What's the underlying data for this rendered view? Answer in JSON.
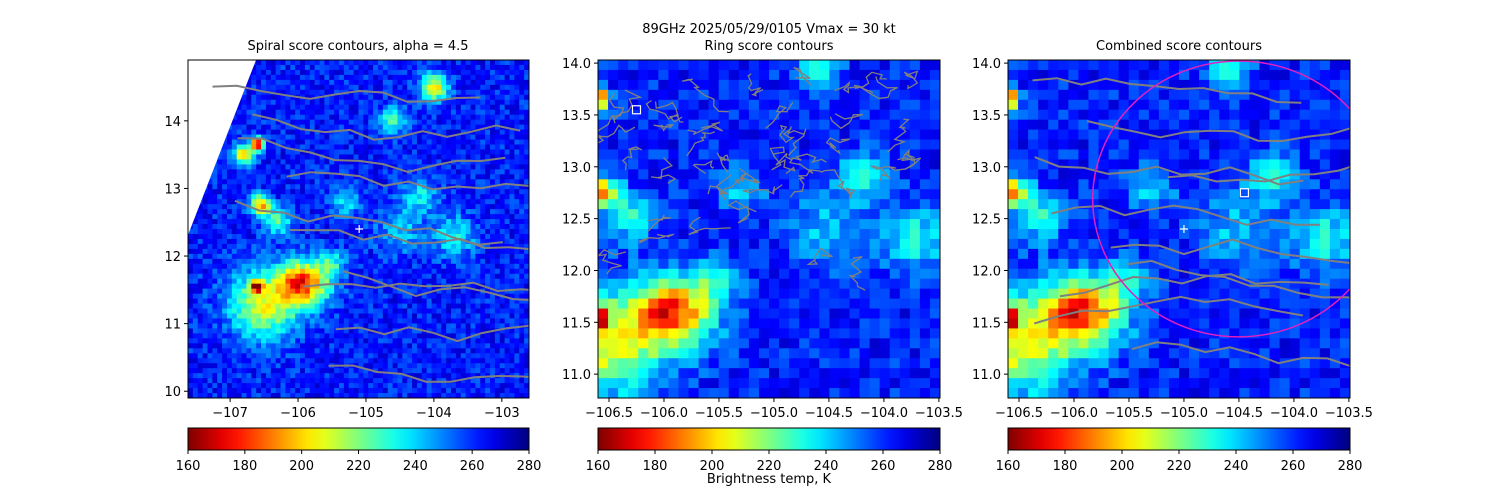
{
  "suptitle": "89GHz  2025/05/29/0105    Vmax = 30 kt",
  "colorbar": {
    "label": "Brightness temp, K",
    "colormap": "jet_r",
    "range": [
      160,
      280
    ],
    "ticks": [
      "160",
      "180",
      "200",
      "220",
      "240",
      "260",
      "280"
    ]
  },
  "chart_data": [
    {
      "type": "heatmap",
      "title": "Spiral score contours, alpha =  4.5",
      "xlim": [
        -107.62,
        -102.6
      ],
      "ylim": [
        9.9,
        14.9
      ],
      "xticks": [
        "−107",
        "−106",
        "−105",
        "−104",
        "−103"
      ],
      "xtick_values": [
        -107,
        -106,
        -105,
        -104,
        -103
      ],
      "yticks": [
        "10",
        "11",
        "12",
        "13",
        "14"
      ],
      "ytick_values": [
        10,
        11,
        12,
        13,
        14
      ],
      "markers": [
        {
          "shape": "plus",
          "x": -105.1,
          "y": 12.4,
          "color": "#ffffff"
        }
      ],
      "contour_color": "#808080"
    },
    {
      "type": "heatmap",
      "title": "Ring score contours",
      "xlim": [
        -106.6,
        -103.49
      ],
      "ylim": [
        10.77,
        14.03
      ],
      "xticks": [
        "−106.5",
        "−106.0",
        "−105.5",
        "−105.0",
        "−104.5",
        "−104.0",
        "−103.5"
      ],
      "xtick_values": [
        -106.5,
        -106,
        -105.5,
        -105,
        -104.5,
        -104,
        -103.5
      ],
      "yticks": [
        "11.0",
        "11.5",
        "12.0",
        "12.5",
        "13.0",
        "13.5",
        "14.0"
      ],
      "ytick_values": [
        11,
        11.5,
        12,
        12.5,
        13,
        13.5,
        14
      ],
      "markers": [
        {
          "shape": "square",
          "x": -106.25,
          "y": 13.55,
          "color": "#ffffff"
        }
      ],
      "contour_color": "#808080"
    },
    {
      "type": "heatmap",
      "title": "Combined score contours",
      "xlim": [
        -106.6,
        -103.49
      ],
      "ylim": [
        10.77,
        14.03
      ],
      "xticks": [
        "−106.5",
        "−106.0",
        "−105.5",
        "−105.0",
        "−104.5",
        "−104.0",
        "−103.5"
      ],
      "xtick_values": [
        -106.5,
        -106,
        -105.5,
        -105,
        -104.5,
        -104,
        -103.5
      ],
      "yticks": [
        "11.0",
        "11.5",
        "12.0",
        "12.5",
        "13.0",
        "13.5",
        "14.0"
      ],
      "ytick_values": [
        11,
        11.5,
        12,
        12.5,
        13,
        13.5,
        14
      ],
      "markers": [
        {
          "shape": "plus",
          "x": -105.0,
          "y": 12.4,
          "color": "#ffffff"
        },
        {
          "shape": "square",
          "x": -104.45,
          "y": 12.75,
          "color": "#ffffff"
        }
      ],
      "circle": {
        "x": -104.5,
        "y": 12.69,
        "radius_deg": 1.33,
        "color": "#e020c0"
      },
      "contour_color": "#808080"
    }
  ]
}
